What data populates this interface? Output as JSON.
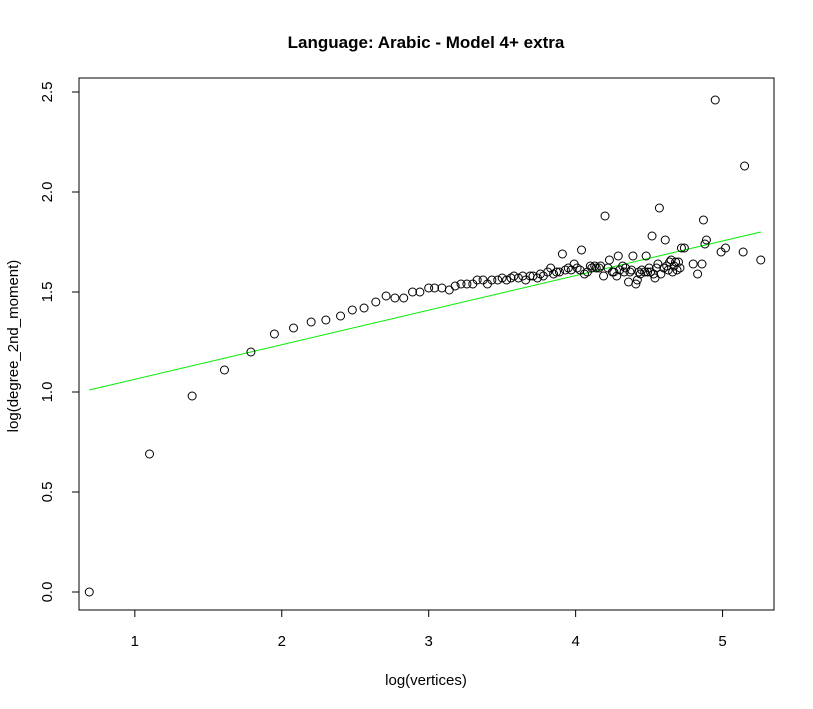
{
  "chart_data": {
    "type": "scatter",
    "title": "Language:  Arabic  -  Model 4+ extra",
    "xlabel": "log(vertices)",
    "ylabel": "log(degree_2nd_moment)",
    "xlim": [
      0.62,
      5.35
    ],
    "ylim": [
      -0.09,
      2.57
    ],
    "xticks": [
      1,
      2,
      3,
      4,
      5
    ],
    "xtick_labels": [
      "1",
      "2",
      "3",
      "4",
      "5"
    ],
    "yticks": [
      0.0,
      0.5,
      1.0,
      1.5,
      2.0,
      2.5
    ],
    "ytick_labels": [
      "0.0",
      "0.5",
      "1.0",
      "1.5",
      "2.0",
      "2.5"
    ],
    "grid": false,
    "point_color": "#000000",
    "fit_line_color": "#00ee00",
    "fit_line": {
      "x": [
        0.69,
        5.26
      ],
      "y": [
        1.01,
        1.8
      ]
    },
    "series": [
      {
        "points": [
          [
            0.69,
            0.0
          ],
          [
            1.1,
            0.69
          ],
          [
            1.39,
            0.98
          ],
          [
            1.61,
            1.11
          ],
          [
            1.79,
            1.2
          ],
          [
            1.95,
            1.29
          ],
          [
            2.08,
            1.32
          ],
          [
            2.2,
            1.35
          ],
          [
            2.3,
            1.36
          ],
          [
            2.4,
            1.38
          ],
          [
            2.48,
            1.41
          ],
          [
            2.56,
            1.42
          ],
          [
            2.64,
            1.45
          ],
          [
            2.71,
            1.48
          ],
          [
            2.77,
            1.47
          ],
          [
            2.83,
            1.47
          ],
          [
            2.89,
            1.5
          ],
          [
            2.94,
            1.5
          ],
          [
            3.0,
            1.52
          ],
          [
            3.04,
            1.52
          ],
          [
            3.09,
            1.52
          ],
          [
            3.14,
            1.51
          ],
          [
            3.18,
            1.53
          ],
          [
            3.22,
            1.54
          ],
          [
            3.26,
            1.54
          ],
          [
            3.3,
            1.54
          ],
          [
            3.33,
            1.56
          ],
          [
            3.37,
            1.56
          ],
          [
            3.4,
            1.54
          ],
          [
            3.43,
            1.56
          ],
          [
            3.47,
            1.56
          ],
          [
            3.5,
            1.57
          ],
          [
            3.53,
            1.56
          ],
          [
            3.56,
            1.57
          ],
          [
            3.58,
            1.58
          ],
          [
            3.61,
            1.57
          ],
          [
            3.64,
            1.58
          ],
          [
            3.66,
            1.56
          ],
          [
            3.69,
            1.58
          ],
          [
            3.71,
            1.58
          ],
          [
            3.74,
            1.57
          ],
          [
            3.76,
            1.59
          ],
          [
            3.78,
            1.58
          ],
          [
            3.81,
            1.6
          ],
          [
            3.83,
            1.62
          ],
          [
            3.85,
            1.59
          ],
          [
            3.87,
            1.6
          ],
          [
            3.89,
            1.6
          ],
          [
            3.91,
            1.69
          ],
          [
            3.93,
            1.61
          ],
          [
            3.95,
            1.62
          ],
          [
            3.97,
            1.61
          ],
          [
            3.99,
            1.64
          ],
          [
            4.01,
            1.62
          ],
          [
            4.03,
            1.61
          ],
          [
            4.04,
            1.71
          ],
          [
            4.06,
            1.59
          ],
          [
            4.08,
            1.6
          ],
          [
            4.1,
            1.63
          ],
          [
            4.11,
            1.62
          ],
          [
            4.13,
            1.63
          ],
          [
            4.14,
            1.62
          ],
          [
            4.16,
            1.62
          ],
          [
            4.17,
            1.63
          ],
          [
            4.19,
            1.58
          ],
          [
            4.2,
            1.88
          ],
          [
            4.22,
            1.62
          ],
          [
            4.23,
            1.66
          ],
          [
            4.25,
            1.6
          ],
          [
            4.26,
            1.6
          ],
          [
            4.28,
            1.58
          ],
          [
            4.29,
            1.68
          ],
          [
            4.3,
            1.61
          ],
          [
            4.32,
            1.63
          ],
          [
            4.33,
            1.6
          ],
          [
            4.34,
            1.62
          ],
          [
            4.36,
            1.55
          ],
          [
            4.37,
            1.6
          ],
          [
            4.38,
            1.61
          ],
          [
            4.39,
            1.68
          ],
          [
            4.41,
            1.54
          ],
          [
            4.42,
            1.56
          ],
          [
            4.43,
            1.6
          ],
          [
            4.44,
            1.59
          ],
          [
            4.45,
            1.61
          ],
          [
            4.47,
            1.6
          ],
          [
            4.48,
            1.68
          ],
          [
            4.49,
            1.6
          ],
          [
            4.5,
            1.62
          ],
          [
            4.51,
            1.6
          ],
          [
            4.52,
            1.78
          ],
          [
            4.53,
            1.59
          ],
          [
            4.54,
            1.57
          ],
          [
            4.55,
            1.62
          ],
          [
            4.56,
            1.64
          ],
          [
            4.57,
            1.92
          ],
          [
            4.58,
            1.59
          ],
          [
            4.6,
            1.62
          ],
          [
            4.61,
            1.76
          ],
          [
            4.62,
            1.63
          ],
          [
            4.63,
            1.61
          ],
          [
            4.64,
            1.65
          ],
          [
            4.65,
            1.66
          ],
          [
            4.66,
            1.6
          ],
          [
            4.67,
            1.63
          ],
          [
            4.68,
            1.65
          ],
          [
            4.69,
            1.61
          ],
          [
            4.7,
            1.65
          ],
          [
            4.71,
            1.62
          ],
          [
            4.72,
            1.72
          ],
          [
            4.74,
            1.72
          ],
          [
            4.8,
            1.64
          ],
          [
            4.83,
            1.59
          ],
          [
            4.86,
            1.64
          ],
          [
            4.87,
            1.86
          ],
          [
            4.88,
            1.74
          ],
          [
            4.89,
            1.76
          ],
          [
            4.95,
            2.46
          ],
          [
            4.99,
            1.7
          ],
          [
            5.02,
            1.72
          ],
          [
            5.14,
            1.7
          ],
          [
            5.15,
            2.13
          ],
          [
            5.26,
            1.66
          ]
        ]
      }
    ]
  }
}
